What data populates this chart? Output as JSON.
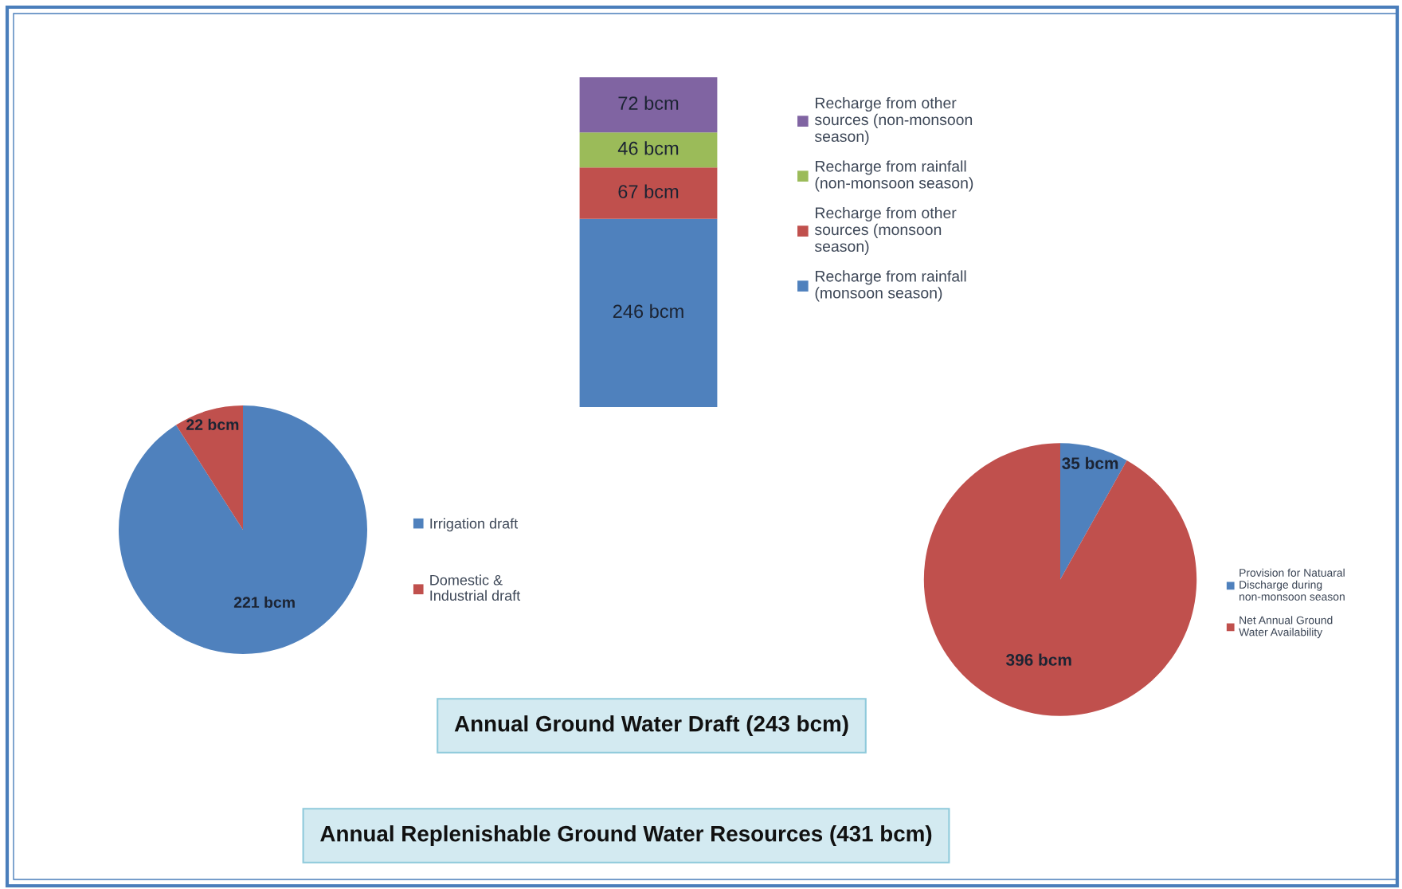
{
  "chart_data": [
    {
      "type": "bar",
      "title": "Annual Replenishable Ground Water Resources (431 bcm)",
      "categories": [
        null
      ],
      "stacked": true,
      "legend": "right",
      "tick_labels": false,
      "series": [
        {
          "name": "Recharge from rainfall (monsoon season)",
          "color": "#4f81bd",
          "values": [
            246
          ],
          "value_labels": [
            "246 bcm"
          ]
        },
        {
          "name": "Recharge from other sources (monsoon season)",
          "color": "#c0504d",
          "values": [
            67
          ],
          "value_labels": [
            "67 bcm"
          ]
        },
        {
          "name": "Recharge from rainfall (non-monsoon season)",
          "color": "#9bbb59",
          "values": [
            46
          ],
          "value_labels": [
            "46 bcm"
          ]
        },
        {
          "name": "Recharge from other sources (non-monsoon season)",
          "color": "#8064a2",
          "values": [
            72
          ],
          "value_labels": [
            "72 bcm"
          ]
        }
      ]
    },
    {
      "type": "pie",
      "title": "Annual Ground Water Draft (243 bcm)",
      "categories": [
        "Irrigation draft",
        "Domestic & Industrial draft"
      ],
      "values": [
        221,
        22
      ],
      "colors": [
        "#4f81bd",
        "#c0504d"
      ],
      "value_labels": [
        "221 bcm",
        "22 bcm"
      ],
      "legend": "right"
    },
    {
      "type": "pie",
      "categories": [
        "Provision for Natuaral Discharge during non-monsoon season",
        "Net Annual Ground Water Availability"
      ],
      "values": [
        35,
        396
      ],
      "colors": [
        "#4f81bd",
        "#c0504d"
      ],
      "value_labels": [
        "35 bcm",
        "396 bcm"
      ],
      "legend": "right"
    }
  ]
}
